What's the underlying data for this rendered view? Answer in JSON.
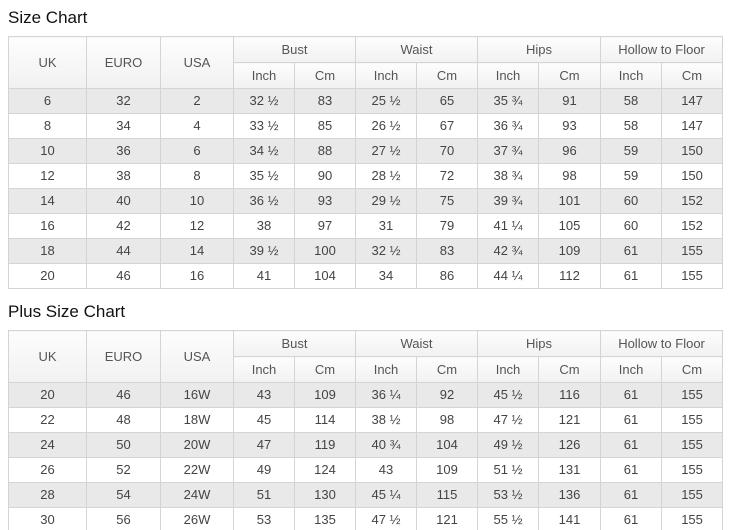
{
  "colors": {
    "row_stripe": "#e9e9e9",
    "row_white": "#ffffff",
    "border": "#d4d4d4",
    "header_bg_top": "#fdfdfd",
    "header_bg_bottom": "#f1f1f1",
    "header_text": "#555555",
    "cell_text": "#444444",
    "title_text": "#111111"
  },
  "chart_data": [
    {
      "type": "table",
      "title": "Size Chart",
      "header": {
        "span_columns": [
          "UK",
          "EURO",
          "USA"
        ],
        "groups": [
          {
            "label": "Bust",
            "subs": [
              "Inch",
              "Cm"
            ]
          },
          {
            "label": "Waist",
            "subs": [
              "Inch",
              "Cm"
            ]
          },
          {
            "label": "Hips",
            "subs": [
              "Inch",
              "Cm"
            ]
          },
          {
            "label": "Hollow to Floor",
            "subs": [
              "Inch",
              "Cm"
            ]
          }
        ]
      },
      "rows": [
        [
          "6",
          "32",
          "2",
          "32 ½",
          "83",
          "25 ½",
          "65",
          "35 ¾",
          "91",
          "58",
          "147"
        ],
        [
          "8",
          "34",
          "4",
          "33 ½",
          "85",
          "26 ½",
          "67",
          "36 ¾",
          "93",
          "58",
          "147"
        ],
        [
          "10",
          "36",
          "6",
          "34 ½",
          "88",
          "27 ½",
          "70",
          "37 ¾",
          "96",
          "59",
          "150"
        ],
        [
          "12",
          "38",
          "8",
          "35 ½",
          "90",
          "28 ½",
          "72",
          "38 ¾",
          "98",
          "59",
          "150"
        ],
        [
          "14",
          "40",
          "10",
          "36 ½",
          "93",
          "29 ½",
          "75",
          "39 ¾",
          "101",
          "60",
          "152"
        ],
        [
          "16",
          "42",
          "12",
          "38",
          "97",
          "31",
          "79",
          "41 ¼",
          "105",
          "60",
          "152"
        ],
        [
          "18",
          "44",
          "14",
          "39 ½",
          "100",
          "32 ½",
          "83",
          "42 ¾",
          "109",
          "61",
          "155"
        ],
        [
          "20",
          "46",
          "16",
          "41",
          "104",
          "34",
          "86",
          "44 ¼",
          "112",
          "61",
          "155"
        ]
      ]
    },
    {
      "type": "table",
      "title": "Plus Size Chart",
      "header": {
        "span_columns": [
          "UK",
          "EURO",
          "USA"
        ],
        "groups": [
          {
            "label": "Bust",
            "subs": [
              "Inch",
              "Cm"
            ]
          },
          {
            "label": "Waist",
            "subs": [
              "Inch",
              "Cm"
            ]
          },
          {
            "label": "Hips",
            "subs": [
              "Inch",
              "Cm"
            ]
          },
          {
            "label": "Hollow to Floor",
            "subs": [
              "Inch",
              "Cm"
            ]
          }
        ]
      },
      "rows": [
        [
          "20",
          "46",
          "16W",
          "43",
          "109",
          "36 ¼",
          "92",
          "45 ½",
          "116",
          "61",
          "155"
        ],
        [
          "22",
          "48",
          "18W",
          "45",
          "114",
          "38 ½",
          "98",
          "47 ½",
          "121",
          "61",
          "155"
        ],
        [
          "24",
          "50",
          "20W",
          "47",
          "119",
          "40 ¾",
          "104",
          "49 ½",
          "126",
          "61",
          "155"
        ],
        [
          "26",
          "52",
          "22W",
          "49",
          "124",
          "43",
          "109",
          "51 ½",
          "131",
          "61",
          "155"
        ],
        [
          "28",
          "54",
          "24W",
          "51",
          "130",
          "45 ¼",
          "115",
          "53 ½",
          "136",
          "61",
          "155"
        ],
        [
          "30",
          "56",
          "26W",
          "53",
          "135",
          "47 ½",
          "121",
          "55 ½",
          "141",
          "61",
          "155"
        ]
      ]
    }
  ]
}
